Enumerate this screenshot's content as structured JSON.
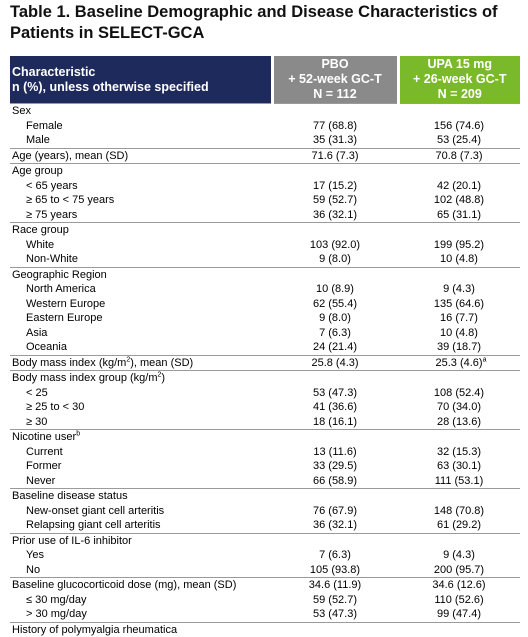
{
  "title_line1": "Table 1. Baseline Demographic and Disease Characteristics of",
  "title_line2": "Patients in SELECT-GCA",
  "header": {
    "char_line1": "Characteristic",
    "char_line2": "n (%), unless otherwise specified",
    "pbo_line1": "PBO",
    "pbo_line2": "+ 52-week GC-T",
    "pbo_line3": "N = 112",
    "upa_line1": "UPA 15 mg",
    "upa_line2": "+ 26-week GC-T",
    "upa_line3": "N = 209"
  },
  "rows": {
    "sex": {
      "label": "Sex"
    },
    "female": {
      "label": "Female",
      "pbo": "77 (68.8)",
      "upa": "156 (74.6)"
    },
    "male": {
      "label": "Male",
      "pbo": "35 (31.3)",
      "upa": "53 (25.4)"
    },
    "age_mean": {
      "label": "Age (years), mean (SD)",
      "pbo": "71.6 (7.3)",
      "upa": "70.8 (7.3)"
    },
    "age_group": {
      "label": "Age group"
    },
    "age_lt65": {
      "label": "< 65 years",
      "pbo": "17 (15.2)",
      "upa": "42 (20.1)"
    },
    "age_65_75": {
      "label": "≥ 65 to < 75 years",
      "pbo": "59 (52.7)",
      "upa": "102 (48.8)"
    },
    "age_ge75": {
      "label": "≥ 75 years",
      "pbo": "36 (32.1)",
      "upa": "65 (31.1)"
    },
    "race_group": {
      "label": "Race group"
    },
    "white": {
      "label": "White",
      "pbo": "103 (92.0)",
      "upa": "199 (95.2)"
    },
    "non_white": {
      "label": "Non-White",
      "pbo": "9 (8.0)",
      "upa": "10 (4.8)"
    },
    "geo_region": {
      "label": "Geographic Region"
    },
    "north_america": {
      "label": "North America",
      "pbo": "10 (8.9)",
      "upa": "9 (4.3)"
    },
    "western_europe": {
      "label": "Western Europe",
      "pbo": "62 (55.4)",
      "upa": "135 (64.6)"
    },
    "eastern_europe": {
      "label": "Eastern Europe",
      "pbo": "9 (8.0)",
      "upa": "16 (7.7)"
    },
    "asia": {
      "label": "Asia",
      "pbo": "7 (6.3)",
      "upa": "10 (4.8)"
    },
    "oceania": {
      "label": "Oceania",
      "pbo": "24 (21.4)",
      "upa": "39 (18.7)"
    },
    "bmi_mean": {
      "label_pre": "Body mass index (kg/m",
      "label_sup": "2",
      "label_post": "), mean (SD)",
      "pbo": "25.8 (4.3)",
      "upa": "25.3 (4.6)",
      "upa_sup": "a"
    },
    "bmi_group": {
      "label_pre": "Body mass index group (kg/m",
      "label_sup": "2",
      "label_post": ")"
    },
    "bmi_lt25": {
      "label": "< 25",
      "pbo": "53 (47.3)",
      "upa": "108 (52.4)"
    },
    "bmi_25_30": {
      "label": "≥ 25 to < 30",
      "pbo": "41 (36.6)",
      "upa": "70 (34.0)"
    },
    "bmi_ge30": {
      "label": "≥ 30",
      "pbo": "18 (16.1)",
      "upa": "28 (13.6)"
    },
    "nicotine": {
      "label": "Nicotine user",
      "label_sup": "b"
    },
    "current": {
      "label": "Current",
      "pbo": "13 (11.6)",
      "upa": "32 (15.3)"
    },
    "former": {
      "label": "Former",
      "pbo": "33 (29.5)",
      "upa": "63 (30.1)"
    },
    "never": {
      "label": "Never",
      "pbo": "66 (58.9)",
      "upa": "111 (53.1)"
    },
    "disease_status": {
      "label": "Baseline disease status"
    },
    "new_onset": {
      "label": "New-onset giant cell arteritis",
      "pbo": "76 (67.9)",
      "upa": "148 (70.8)"
    },
    "relapsing": {
      "label": "Relapsing giant cell arteritis",
      "pbo": "36 (32.1)",
      "upa": "61 (29.2)"
    },
    "il6": {
      "label": "Prior use of IL-6 inhibitor"
    },
    "yes": {
      "label": "Yes",
      "pbo": "7 (6.3)",
      "upa": "9 (4.3)"
    },
    "no": {
      "label": "No",
      "pbo": "105 (93.8)",
      "upa": "200 (95.7)"
    },
    "gc_dose": {
      "label": "Baseline glucocorticoid dose (mg), mean (SD)",
      "pbo": "34.6 (11.9)",
      "upa": "34.6 (12.6)"
    },
    "le30": {
      "label": "≤ 30 mg/day",
      "pbo": "59 (52.7)",
      "upa": "110 (52.6)"
    },
    "gt30": {
      "label": "> 30 mg/day",
      "pbo": "53 (47.3)",
      "upa": "99 (47.4)"
    },
    "history": {
      "label": "History of polymyalgia rheumatica"
    }
  }
}
